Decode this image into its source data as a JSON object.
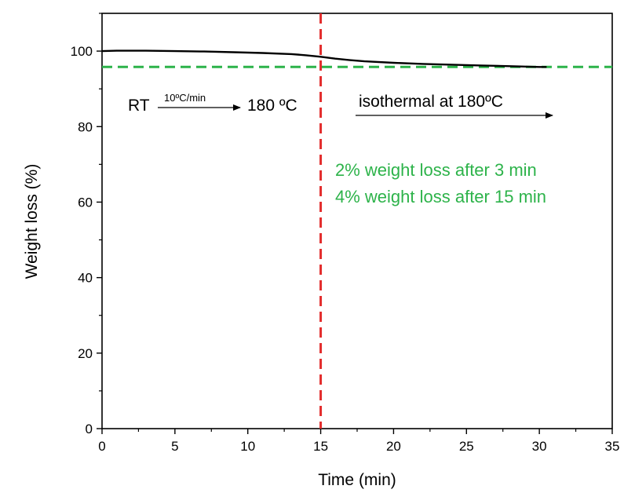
{
  "chart_data": {
    "type": "line",
    "title": "",
    "xlabel": "Time (min)",
    "ylabel": "Weight loss (%)",
    "xlim": [
      0,
      35
    ],
    "ylim": [
      0,
      110
    ],
    "xticks": [
      0,
      5,
      10,
      15,
      20,
      25,
      30,
      35
    ],
    "yticks": [
      0,
      20,
      40,
      60,
      80,
      100
    ],
    "grid": false,
    "series": [
      {
        "color": "#000000",
        "x": [
          0,
          1,
          3,
          5,
          7,
          9,
          11,
          13,
          14,
          15,
          16,
          17,
          18,
          20,
          22,
          24,
          26,
          28,
          29,
          30,
          30.5
        ],
        "y": [
          100,
          100.1,
          100.1,
          100.0,
          99.9,
          99.7,
          99.5,
          99.2,
          98.9,
          98.5,
          98.0,
          97.6,
          97.3,
          96.9,
          96.6,
          96.4,
          96.2,
          96.0,
          95.9,
          95.8,
          95.8
        ]
      }
    ],
    "reference_lines": [
      {
        "orientation": "horizontal",
        "value": 95.8,
        "style": "dashed",
        "color": "#2db34a"
      },
      {
        "orientation": "vertical",
        "value": 15,
        "style": "dashed",
        "color": "#e32b2b"
      }
    ],
    "annotations": {
      "rt": "RT",
      "rate": "10ºC/min",
      "target": "180 ºC",
      "isothermal": "isothermal at 180ºC",
      "loss_lines": [
        "2% weight loss after 3 min",
        "4% weight loss after 15 min"
      ],
      "loss_color": "#2db34a"
    }
  }
}
